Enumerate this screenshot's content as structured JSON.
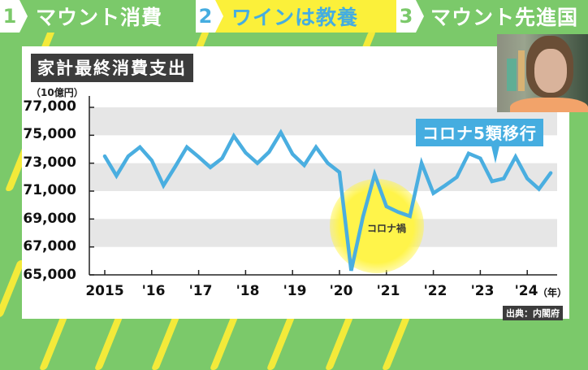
{
  "header": {
    "segments": [
      {
        "number": "1",
        "label": "マウント消費",
        "bg": "#7bc96a",
        "number_color": "#7bc96a",
        "label_color": "#ffffff"
      },
      {
        "number": "2",
        "label": "ワインは教養",
        "bg": "#fbf03a",
        "number_color": "#45ade0",
        "label_color": "#45ade0"
      },
      {
        "number": "3",
        "label": "マウント先進国",
        "bg": "#7bc96a",
        "number_color": "#7bc96a",
        "label_color": "#ffffff"
      }
    ]
  },
  "chart_title": "家計最終消費支出",
  "unit_label": "（10億円）",
  "year_suffix": "（年）",
  "source": "出典：内閣府",
  "annotations": {
    "covid": "コロナ禍",
    "category5": "コロナ5類移行"
  },
  "colors": {
    "line": "#4aaee0",
    "band": "#e6e6e6",
    "highlight": "#fff44a",
    "background": "#7bc96a",
    "stripe": "#f3ea3a"
  },
  "chart_data": {
    "type": "line",
    "title": "家計最終消費支出",
    "xlabel": "（年）",
    "ylabel": "（10億円）",
    "ylim": [
      65000,
      77000
    ],
    "yticks": [
      "77,000",
      "75,000",
      "73,000",
      "71,000",
      "69,000",
      "67,000",
      "65,000"
    ],
    "xticks": [
      "2015",
      "'16",
      "'17",
      "'18",
      "'19",
      "'20",
      "'21",
      "'22",
      "'23",
      "'24"
    ],
    "grid": "alternating horizontal bands",
    "x": [
      "2015Q1",
      "2015Q2",
      "2015Q3",
      "2015Q4",
      "2016Q1",
      "2016Q2",
      "2016Q3",
      "2016Q4",
      "2017Q1",
      "2017Q2",
      "2017Q3",
      "2017Q4",
      "2018Q1",
      "2018Q2",
      "2018Q3",
      "2018Q4",
      "2019Q1",
      "2019Q2",
      "2019Q3",
      "2019Q4",
      "2020Q1",
      "2020Q2",
      "2020Q3",
      "2020Q4",
      "2021Q1",
      "2021Q2",
      "2021Q3",
      "2021Q4",
      "2022Q1",
      "2022Q2",
      "2022Q3",
      "2022Q4",
      "2023Q1",
      "2023Q2",
      "2023Q3",
      "2023Q4",
      "2024Q1",
      "2024Q2",
      "2024Q3"
    ],
    "series": [
      {
        "name": "家計最終消費支出",
        "values": [
          73500,
          72100,
          73500,
          74150,
          73200,
          71400,
          72750,
          74150,
          73450,
          72700,
          73350,
          74950,
          73750,
          73000,
          73800,
          75200,
          73650,
          72850,
          74150,
          73000,
          72350,
          65300,
          69150,
          72200,
          69900,
          69500,
          69200,
          73000,
          70850,
          71400,
          72000,
          73700,
          73350,
          71700,
          71900,
          73450,
          71900,
          71150,
          72300
        ]
      }
    ],
    "annotations": [
      {
        "text": "コロナ禍",
        "at": "2020Q2"
      },
      {
        "text": "コロナ5類移行",
        "at": "2023Q2"
      }
    ]
  }
}
